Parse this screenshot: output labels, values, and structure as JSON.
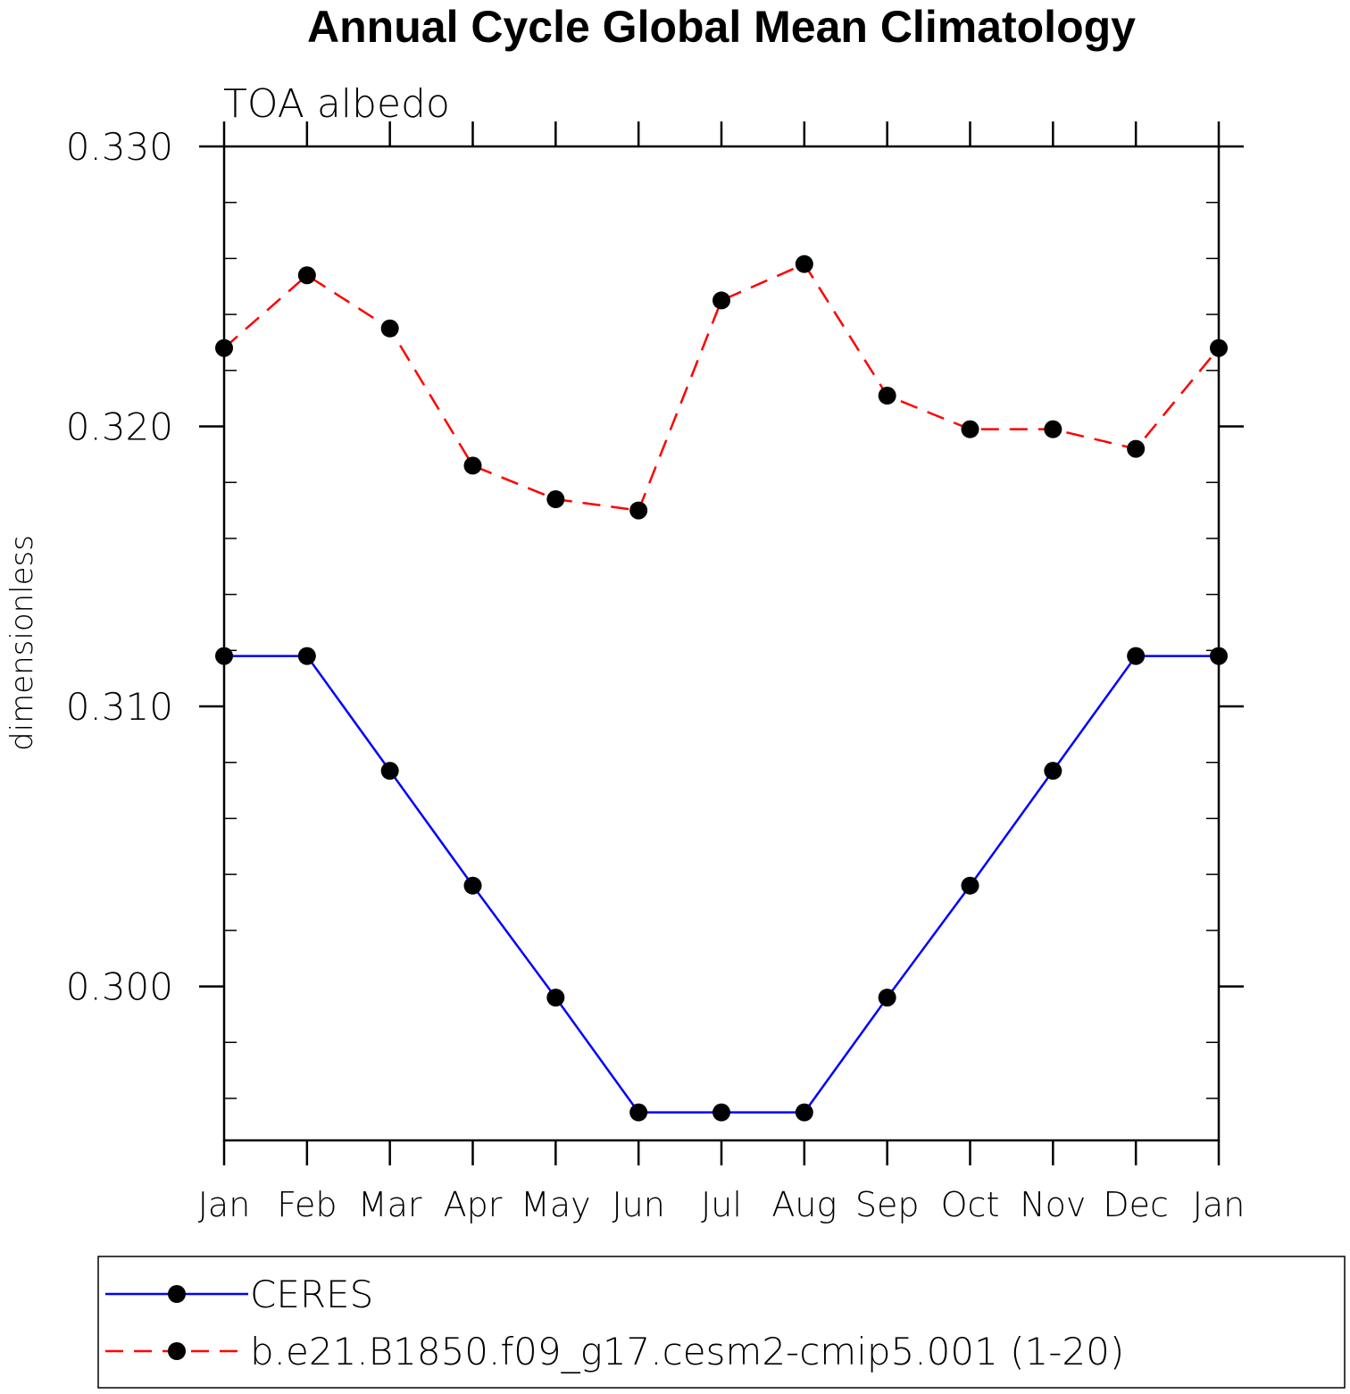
{
  "chart_data": {
    "type": "line",
    "title": "Annual Cycle Global Mean Climatology",
    "subtitle": "TOA albedo",
    "xlabel": "",
    "ylabel": "dimensionless",
    "categories": [
      "Jan",
      "Feb",
      "Mar",
      "Apr",
      "May",
      "Jun",
      "Jul",
      "Aug",
      "Sep",
      "Oct",
      "Nov",
      "Dec",
      "Jan"
    ],
    "ylim": [
      0.2945,
      0.33
    ],
    "yticks": [
      0.3,
      0.31,
      0.32,
      0.33
    ],
    "ytick_labels": [
      "0.300",
      "0.310",
      "0.320",
      "0.330"
    ],
    "grid": false,
    "legend_position": "bottom",
    "series": [
      {
        "name": "CERES",
        "color": "#0000ff",
        "dash": "solid",
        "marker": "filled-circle",
        "values": [
          0.3118,
          0.3118,
          0.3077,
          0.3036,
          0.2996,
          0.2955,
          0.2955,
          0.2955,
          0.2996,
          0.3036,
          0.3077,
          0.3118,
          0.3118
        ]
      },
      {
        "name": "b.e21.B1850.f09_g17.cesm2-cmip5.001 (1-20)",
        "color": "#ff0000",
        "dash": "dashed",
        "marker": "filled-circle",
        "values": [
          0.3228,
          0.3254,
          0.3235,
          0.3186,
          0.3174,
          0.317,
          0.3245,
          0.3258,
          0.3211,
          0.3199,
          0.3199,
          0.3192,
          0.3228
        ]
      }
    ]
  }
}
